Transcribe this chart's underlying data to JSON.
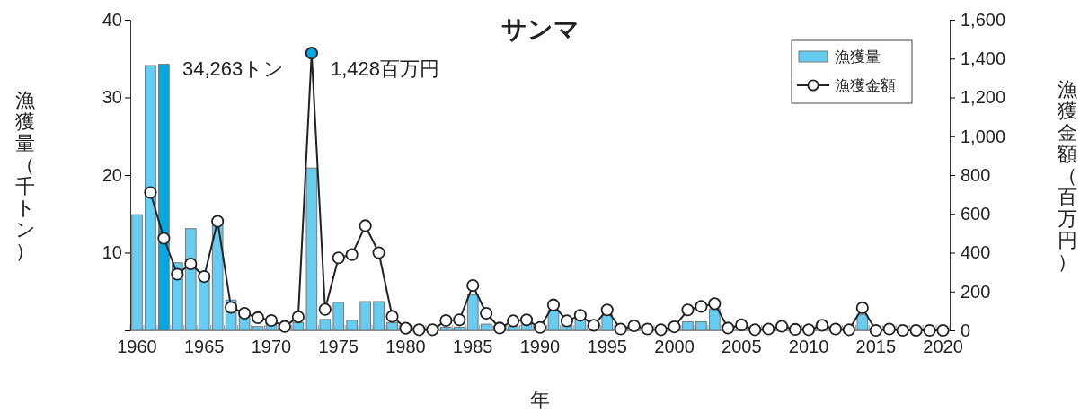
{
  "chart_data": {
    "type": "bar",
    "title": "サンマ",
    "xlabel": "年",
    "ylabel": "漁獲量（千トン）",
    "y2label": "漁獲金額（百万円）",
    "categories": [
      "1960",
      null,
      null,
      null,
      null,
      "1965",
      null,
      null,
      null,
      null,
      "1970",
      null,
      null,
      null,
      null,
      "1975",
      null,
      null,
      null,
      null,
      "1980",
      null,
      null,
      null,
      null,
      "1985",
      null,
      null,
      null,
      null,
      "1990",
      null,
      null,
      null,
      null,
      "1995",
      null,
      null,
      null,
      null,
      "2000",
      null,
      null,
      null,
      null,
      "2005",
      null,
      null,
      null,
      null,
      "2010",
      null,
      null,
      null,
      null,
      "2015",
      null,
      null,
      null,
      null,
      "2020"
    ],
    "series": [
      {
        "name": "漁獲量",
        "color": "#66ccf2",
        "colors": [
          "#66ccf2",
          "#66ccf2",
          "#00a8e6",
          "#66ccf2",
          "#66ccf2",
          "#66ccf2",
          "#66ccf2",
          "#66ccf2",
          "#66ccf2",
          "#66ccf2",
          "#66ccf2",
          "#66ccf2",
          "#66ccf2",
          "#66ccf2",
          "#66ccf2",
          "#66ccf2",
          "#66ccf2",
          "#66ccf2",
          "#66ccf2",
          "#66ccf2",
          "#66ccf2",
          "#66ccf2",
          "#66ccf2",
          "#66ccf2",
          "#66ccf2",
          "#66ccf2",
          "#66ccf2",
          "#66ccf2",
          "#66ccf2",
          "#66ccf2",
          "#66ccf2",
          "#66ccf2",
          "#66ccf2",
          "#66ccf2",
          "#66ccf2",
          "#66ccf2",
          "#66ccf2",
          "#66ccf2",
          "#66ccf2",
          "#66ccf2",
          "#66ccf2",
          "#66ccf2",
          "#66ccf2",
          "#66ccf2",
          "#66ccf2",
          "#66ccf2",
          "#66ccf2",
          "#66ccf2",
          "#66ccf2",
          "#66ccf2",
          "#66ccf2",
          "#66ccf2",
          "#66ccf2",
          "#66ccf2",
          "#66ccf2",
          "#66ccf2",
          "#66ccf2",
          "#66ccf2",
          "#66ccf2",
          "#66ccf2",
          "#66ccf2"
        ],
        "values": [
          14.9,
          34.1,
          34.263,
          8.7,
          13.1,
          7.3,
          13.7,
          3.9,
          2.0,
          0.5,
          1.0,
          0,
          1.0,
          20.9,
          1.4,
          3.6,
          1.3,
          3.7,
          3.7,
          1.0,
          0,
          0,
          0,
          0.4,
          0.4,
          4.6,
          0.8,
          0,
          0.5,
          0.8,
          0,
          2.6,
          0.8,
          1.4,
          0,
          2.0,
          0,
          0,
          0,
          0,
          0,
          1.1,
          1.1,
          2.7,
          0,
          0,
          0,
          0,
          0,
          0,
          0,
          0,
          0,
          0,
          2.0,
          0,
          0,
          0,
          0,
          0,
          0
        ]
      },
      {
        "name": "漁獲金額",
        "type": "line",
        "axis": "y2",
        "color": "#222222",
        "colors": [
          "#ffffff",
          "#ffffff",
          "#ffffff",
          "#ffffff",
          "#ffffff",
          "#ffffff",
          "#ffffff",
          "#ffffff",
          "#ffffff",
          "#ffffff",
          "#ffffff",
          "#ffffff",
          "#ffffff",
          "#00a8e6",
          "#ffffff",
          "#ffffff",
          "#ffffff",
          "#ffffff",
          "#ffffff",
          "#ffffff",
          "#ffffff",
          "#ffffff",
          "#ffffff",
          "#ffffff",
          "#ffffff",
          "#ffffff",
          "#ffffff",
          "#ffffff",
          "#ffffff",
          "#ffffff",
          "#ffffff",
          "#ffffff",
          "#ffffff",
          "#ffffff",
          "#ffffff",
          "#ffffff",
          "#ffffff",
          "#ffffff",
          "#ffffff",
          "#ffffff",
          "#ffffff",
          "#ffffff",
          "#ffffff",
          "#ffffff",
          "#ffffff",
          "#ffffff",
          "#ffffff",
          "#ffffff",
          "#ffffff",
          "#ffffff",
          "#ffffff",
          "#ffffff",
          "#ffffff",
          "#ffffff",
          "#ffffff",
          "#ffffff",
          "#ffffff",
          "#ffffff",
          "#ffffff",
          "#ffffff",
          "#ffffff"
        ],
        "values": [
          null,
          710,
          474,
          289,
          342,
          277,
          562,
          118,
          88,
          65,
          51,
          20,
          69,
          1428,
          108,
          373,
          390,
          539,
          400,
          72,
          11,
          3,
          3,
          51,
          54,
          231,
          88,
          12,
          49,
          54,
          15,
          131,
          49,
          77,
          26,
          105,
          7,
          23,
          7,
          3,
          18,
          105,
          123,
          137,
          12,
          28,
          3,
          7,
          21,
          5,
          3,
          26,
          7,
          3,
          116,
          0,
          7,
          0,
          0,
          0,
          0
        ]
      }
    ],
    "ylim": [
      0,
      40
    ],
    "yticks": [
      {
        "value": 0,
        "label": null
      },
      10,
      20,
      30,
      40
    ],
    "y2lim": [
      0,
      1600
    ],
    "y2ticks": [
      0,
      200,
      400,
      600,
      800,
      {
        "value": 1000,
        "label": "1,000"
      },
      {
        "value": 1200,
        "label": "1,200"
      },
      {
        "value": 1400,
        "label": "1,400"
      },
      {
        "value": 1600,
        "label": "1,600"
      }
    ],
    "annotations": [
      "34,263トン",
      "1,428百万円"
    ],
    "legend": "top right",
    "marker": "circle",
    "grid": false
  }
}
